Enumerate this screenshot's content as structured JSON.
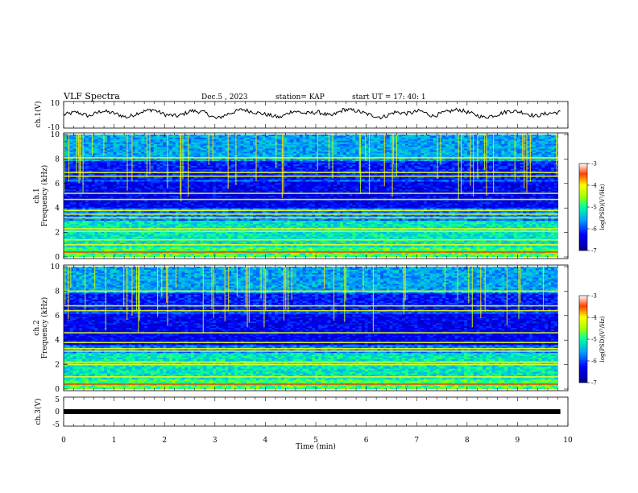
{
  "header": {
    "title": "VLF Spectra",
    "date": "Dec.5 , 2023",
    "station": "station= KAP",
    "start": "start  UT =   17: 40: 1"
  },
  "chart_data": [
    {
      "type": "line",
      "panel": "ch1-waveform",
      "ylabel": "ch.1(V)",
      "ylim": [
        -10,
        10
      ],
      "yticks": [
        "10",
        "-10"
      ],
      "x_range_min": [
        0,
        9.85
      ],
      "series": [
        {
          "values": [
            0,
            2,
            -1,
            3,
            1,
            -2,
            2,
            4,
            0,
            -1,
            3,
            2,
            -3,
            1,
            4,
            2,
            0,
            -2,
            3,
            1,
            2,
            -1,
            4,
            3,
            0,
            -2,
            2,
            1,
            3,
            -1,
            2,
            4,
            1,
            -2,
            0,
            3,
            2,
            -1,
            1,
            2
          ]
        }
      ]
    },
    {
      "type": "heatmap",
      "panel": "ch1-spectrogram",
      "ylabel": "ch.1",
      "ylabel2": "Frequency (kHz)",
      "ylim": [
        0,
        10
      ],
      "yticks": [
        "0",
        "2",
        "4",
        "6",
        "8",
        "10"
      ],
      "band_lines_khz": [
        0.4,
        1.0,
        1.4,
        2.1,
        2.3,
        3.2,
        3.5,
        3.8,
        4.7,
        5.2,
        6.6,
        6.9,
        8.1
      ],
      "colorbar": {
        "label": "log(PSD)(V²/Hz)",
        "range": [
          -7,
          -3
        ],
        "ticks": [
          "-3",
          "-4",
          "-5",
          "-6",
          "-7"
        ]
      }
    },
    {
      "type": "heatmap",
      "panel": "ch2-spectrogram",
      "ylabel": "ch.2",
      "ylabel2": "Frequency (kHz)",
      "ylim": [
        0,
        10
      ],
      "yticks": [
        "0",
        "2",
        "4",
        "6",
        "8",
        "10"
      ],
      "band_lines_khz": [
        0.4,
        1.0,
        2.0,
        2.2,
        3.1,
        3.3,
        3.8,
        4.6,
        6.4,
        6.8,
        8.0
      ],
      "colorbar": {
        "label": "log(PSD)(V²/Hz)",
        "range": [
          -7,
          -3
        ],
        "ticks": [
          "-3",
          "-4",
          "-5",
          "-6",
          "-7"
        ]
      }
    },
    {
      "type": "line",
      "panel": "ch3-waveform",
      "ylabel": "ch.3(V)",
      "ylim": [
        -5,
        5
      ],
      "yticks": [
        "5",
        "0",
        "-5"
      ],
      "series": [
        {
          "values": [
            0,
            0
          ]
        }
      ],
      "x_range_min": [
        0,
        9.85
      ]
    }
  ],
  "xaxis": {
    "label": "Time (min)",
    "range": [
      0,
      10
    ],
    "ticks": [
      "0",
      "1",
      "2",
      "3",
      "4",
      "5",
      "6",
      "7",
      "8",
      "9",
      "10"
    ]
  }
}
